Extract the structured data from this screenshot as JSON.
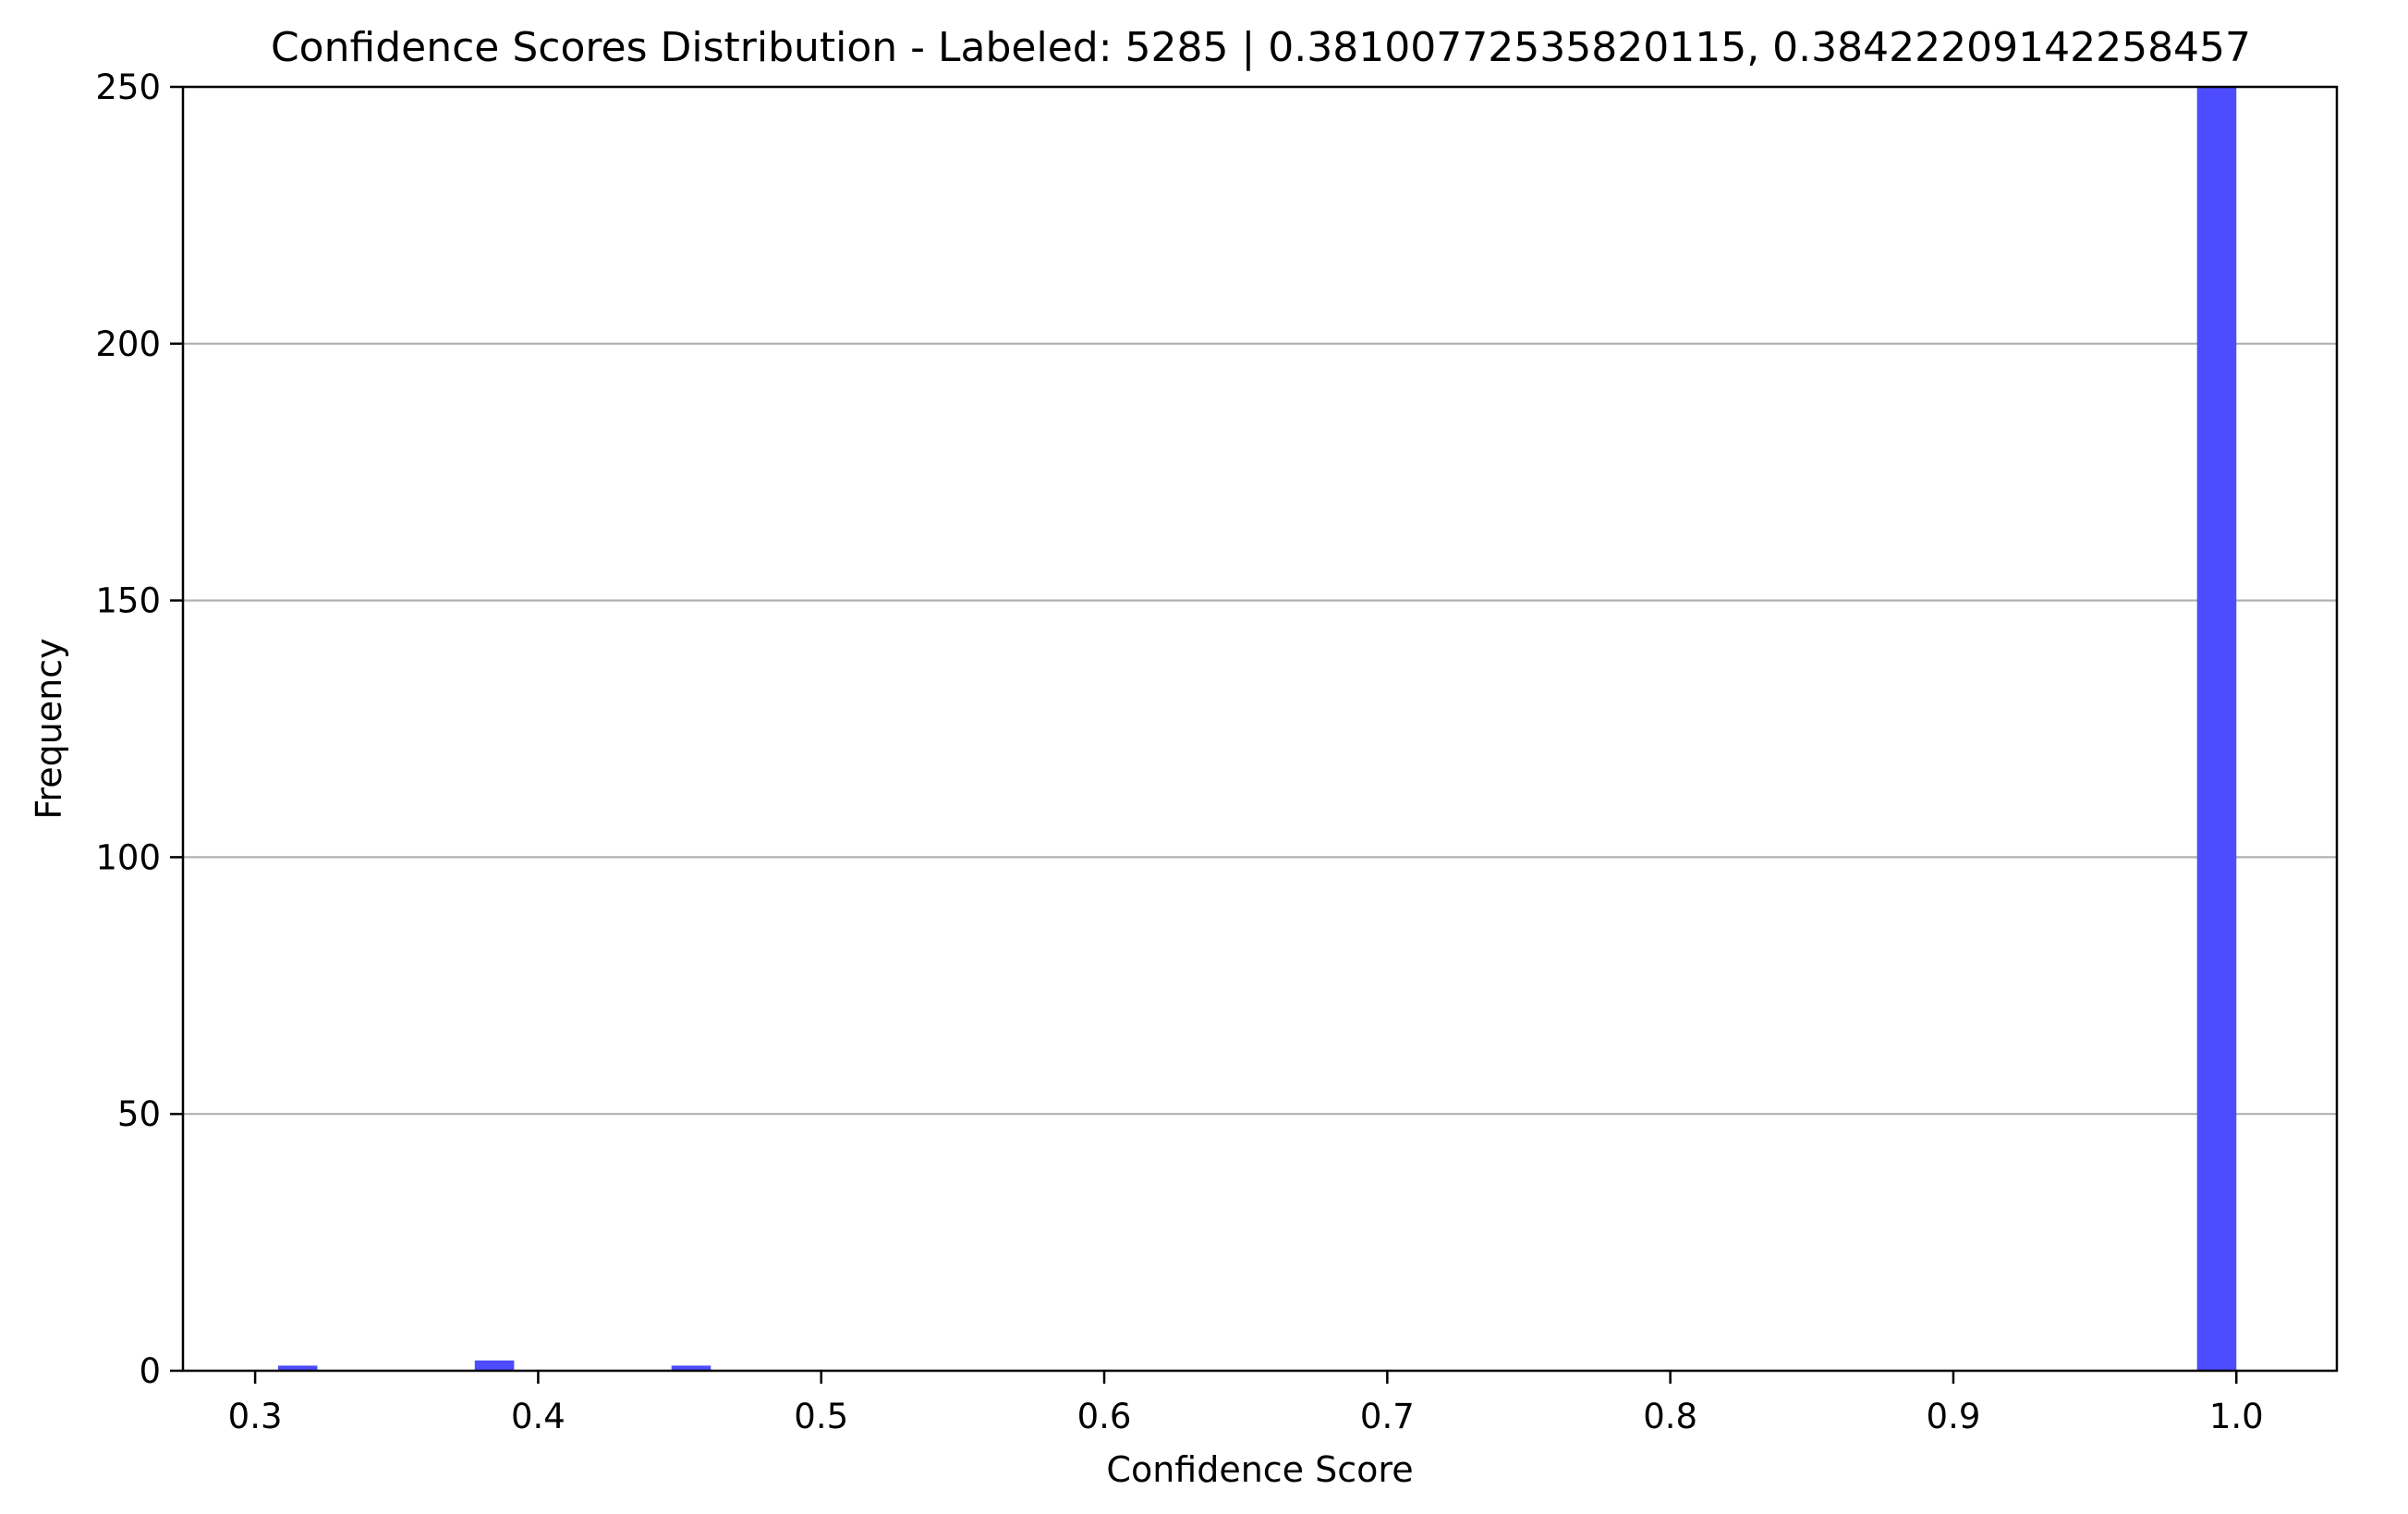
{
  "chart_data": {
    "type": "bar",
    "title": "Confidence Scores Distribution - Labeled: 5285 | 0.38100772535820115, 0.38422209142258457",
    "xlabel": "Confidence Score",
    "ylabel": "Frequency",
    "xlim": [
      0.2745,
      1.0355
    ],
    "ylim": [
      0,
      250
    ],
    "xticks": [
      "0.3",
      "0.4",
      "0.5",
      "0.6",
      "0.7",
      "0.8",
      "0.9",
      "1.0"
    ],
    "yticks": [
      "0",
      "50",
      "100",
      "150",
      "200",
      "250"
    ],
    "grid": "horizontal",
    "bar_color": "#4d4dff",
    "bin_width": 0.0139,
    "bins": [
      {
        "x0": 0.3081,
        "count": 1
      },
      {
        "x0": 0.3776,
        "count": 2
      },
      {
        "x0": 0.4471,
        "count": 1
      },
      {
        "x0": 0.9861,
        "count": 250
      }
    ]
  }
}
